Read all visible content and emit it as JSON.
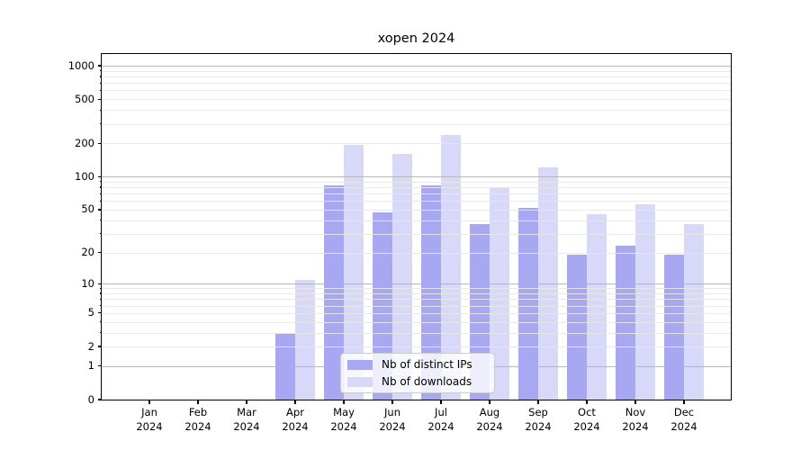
{
  "figure": {
    "title": "xopen 2024"
  },
  "chart_data": {
    "type": "bar",
    "title": "xopen 2024",
    "xlabel": "",
    "ylabel": "",
    "yscale": "log1p",
    "ylim": [
      0,
      1270
    ],
    "grid": true,
    "categories": [
      "Jan 2024",
      "Feb 2024",
      "Mar 2024",
      "Apr 2024",
      "May 2024",
      "Jun 2024",
      "Jul 2024",
      "Aug 2024",
      "Sep 2024",
      "Oct 2024",
      "Nov 2024",
      "Dec 2024"
    ],
    "x_tick_month": [
      "Jan",
      "Feb",
      "Mar",
      "Apr",
      "May",
      "Jun",
      "Jul",
      "Aug",
      "Sep",
      "Oct",
      "Nov",
      "Dec"
    ],
    "x_tick_year": "2024",
    "series": [
      {
        "name": "Nb of distinct IPs",
        "key": "ips",
        "color": "#a8a8f2",
        "values": [
          0,
          0,
          0,
          3,
          83,
          47,
          83,
          37,
          52,
          19,
          23,
          19
        ]
      },
      {
        "name": "Nb of downloads",
        "key": "downloads",
        "color": "#d8d8f8",
        "values": [
          0,
          0,
          0,
          11,
          195,
          160,
          240,
          80,
          122,
          45,
          56,
          37
        ]
      }
    ],
    "y_tick_labels": [
      "0",
      "1",
      "2",
      "5",
      "10",
      "20",
      "50",
      "100",
      "200",
      "500",
      "1000"
    ],
    "y_tick_values": [
      0,
      1,
      2,
      5,
      10,
      20,
      50,
      100,
      200,
      500,
      1000
    ],
    "y_major_gridlines": [
      1,
      10,
      100,
      1000
    ],
    "y_minor_gridlines": [
      2,
      3,
      4,
      5,
      6,
      7,
      8,
      9,
      20,
      30,
      40,
      50,
      60,
      70,
      80,
      90,
      200,
      300,
      400,
      500,
      600,
      700,
      800,
      900
    ],
    "legend_position": "lower center"
  }
}
